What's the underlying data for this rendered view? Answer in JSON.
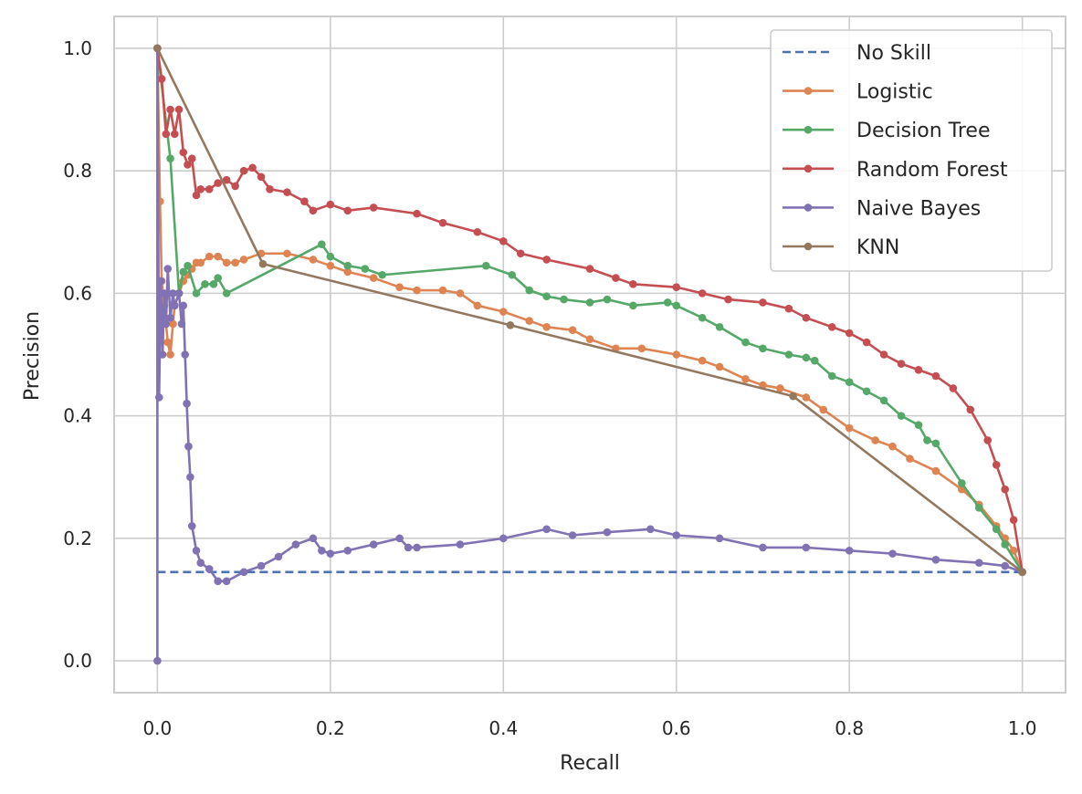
{
  "chart_data": {
    "type": "line",
    "title": "",
    "xlabel": "Recall",
    "ylabel": "Precision",
    "xlim": [
      -0.05,
      1.05
    ],
    "ylim": [
      -0.052,
      1.052
    ],
    "xticks": [
      0.0,
      0.2,
      0.4,
      0.6,
      0.8,
      1.0
    ],
    "xtick_labels": [
      "0.0",
      "0.2",
      "0.4",
      "0.6",
      "0.8",
      "1.0"
    ],
    "yticks": [
      0.0,
      0.2,
      0.4,
      0.6,
      0.8,
      1.0
    ],
    "ytick_labels": [
      "0.0",
      "0.2",
      "0.4",
      "0.6",
      "0.8",
      "1.0"
    ],
    "grid": true,
    "legend_position": "top-right",
    "series": [
      {
        "name": "No Skill",
        "color": "#4c72b0",
        "style": "dashed",
        "markers": false,
        "points": [
          [
            0.0,
            0.145
          ],
          [
            1.0,
            0.145
          ]
        ]
      },
      {
        "name": "Logistic",
        "color": "#dd8452",
        "style": "solid",
        "markers": true,
        "points": [
          [
            0.0,
            1.0
          ],
          [
            0.003,
            0.75
          ],
          [
            0.005,
            0.62
          ],
          [
            0.008,
            0.58
          ],
          [
            0.01,
            0.55
          ],
          [
            0.012,
            0.52
          ],
          [
            0.015,
            0.5
          ],
          [
            0.018,
            0.55
          ],
          [
            0.02,
            0.58
          ],
          [
            0.025,
            0.6
          ],
          [
            0.03,
            0.62
          ],
          [
            0.035,
            0.63
          ],
          [
            0.04,
            0.64
          ],
          [
            0.045,
            0.65
          ],
          [
            0.05,
            0.65
          ],
          [
            0.06,
            0.66
          ],
          [
            0.07,
            0.66
          ],
          [
            0.08,
            0.65
          ],
          [
            0.09,
            0.65
          ],
          [
            0.1,
            0.655
          ],
          [
            0.12,
            0.665
          ],
          [
            0.15,
            0.665
          ],
          [
            0.18,
            0.655
          ],
          [
            0.2,
            0.645
          ],
          [
            0.22,
            0.635
          ],
          [
            0.25,
            0.625
          ],
          [
            0.28,
            0.61
          ],
          [
            0.3,
            0.605
          ],
          [
            0.33,
            0.605
          ],
          [
            0.35,
            0.6
          ],
          [
            0.37,
            0.58
          ],
          [
            0.4,
            0.57
          ],
          [
            0.43,
            0.555
          ],
          [
            0.45,
            0.545
          ],
          [
            0.48,
            0.54
          ],
          [
            0.5,
            0.525
          ],
          [
            0.53,
            0.51
          ],
          [
            0.56,
            0.51
          ],
          [
            0.6,
            0.5
          ],
          [
            0.63,
            0.49
          ],
          [
            0.65,
            0.48
          ],
          [
            0.68,
            0.46
          ],
          [
            0.7,
            0.45
          ],
          [
            0.72,
            0.445
          ],
          [
            0.75,
            0.43
          ],
          [
            0.77,
            0.41
          ],
          [
            0.8,
            0.38
          ],
          [
            0.83,
            0.36
          ],
          [
            0.85,
            0.35
          ],
          [
            0.87,
            0.33
          ],
          [
            0.9,
            0.31
          ],
          [
            0.93,
            0.28
          ],
          [
            0.95,
            0.255
          ],
          [
            0.97,
            0.22
          ],
          [
            0.98,
            0.2
          ],
          [
            0.99,
            0.18
          ],
          [
            1.0,
            0.145
          ]
        ]
      },
      {
        "name": "Decision Tree",
        "color": "#55a868",
        "style": "solid",
        "markers": true,
        "points": [
          [
            0.0,
            1.0
          ],
          [
            0.015,
            0.82
          ],
          [
            0.025,
            0.6
          ],
          [
            0.03,
            0.635
          ],
          [
            0.035,
            0.645
          ],
          [
            0.045,
            0.6
          ],
          [
            0.055,
            0.615
          ],
          [
            0.065,
            0.615
          ],
          [
            0.07,
            0.625
          ],
          [
            0.08,
            0.6
          ],
          [
            0.19,
            0.68
          ],
          [
            0.2,
            0.66
          ],
          [
            0.22,
            0.645
          ],
          [
            0.24,
            0.64
          ],
          [
            0.26,
            0.63
          ],
          [
            0.38,
            0.645
          ],
          [
            0.41,
            0.63
          ],
          [
            0.43,
            0.605
          ],
          [
            0.45,
            0.595
          ],
          [
            0.47,
            0.59
          ],
          [
            0.5,
            0.585
          ],
          [
            0.52,
            0.59
          ],
          [
            0.55,
            0.58
          ],
          [
            0.59,
            0.585
          ],
          [
            0.6,
            0.58
          ],
          [
            0.63,
            0.56
          ],
          [
            0.65,
            0.545
          ],
          [
            0.68,
            0.52
          ],
          [
            0.7,
            0.51
          ],
          [
            0.73,
            0.5
          ],
          [
            0.75,
            0.495
          ],
          [
            0.76,
            0.49
          ],
          [
            0.78,
            0.465
          ],
          [
            0.8,
            0.455
          ],
          [
            0.82,
            0.44
          ],
          [
            0.84,
            0.425
          ],
          [
            0.86,
            0.4
          ],
          [
            0.88,
            0.385
          ],
          [
            0.89,
            0.36
          ],
          [
            0.9,
            0.355
          ],
          [
            0.93,
            0.29
          ],
          [
            0.95,
            0.25
          ],
          [
            0.97,
            0.215
          ],
          [
            0.98,
            0.19
          ],
          [
            1.0,
            0.145
          ]
        ]
      },
      {
        "name": "Random Forest",
        "color": "#c44e52",
        "style": "solid",
        "markers": true,
        "points": [
          [
            0.0,
            1.0
          ],
          [
            0.005,
            0.95
          ],
          [
            0.01,
            0.86
          ],
          [
            0.015,
            0.9
          ],
          [
            0.02,
            0.86
          ],
          [
            0.025,
            0.9
          ],
          [
            0.03,
            0.83
          ],
          [
            0.035,
            0.81
          ],
          [
            0.04,
            0.82
          ],
          [
            0.045,
            0.76
          ],
          [
            0.05,
            0.77
          ],
          [
            0.06,
            0.77
          ],
          [
            0.07,
            0.78
          ],
          [
            0.08,
            0.785
          ],
          [
            0.09,
            0.775
          ],
          [
            0.1,
            0.8
          ],
          [
            0.11,
            0.805
          ],
          [
            0.12,
            0.79
          ],
          [
            0.13,
            0.77
          ],
          [
            0.15,
            0.765
          ],
          [
            0.17,
            0.75
          ],
          [
            0.18,
            0.735
          ],
          [
            0.2,
            0.745
          ],
          [
            0.22,
            0.735
          ],
          [
            0.25,
            0.74
          ],
          [
            0.3,
            0.73
          ],
          [
            0.33,
            0.715
          ],
          [
            0.37,
            0.7
          ],
          [
            0.4,
            0.685
          ],
          [
            0.42,
            0.665
          ],
          [
            0.45,
            0.655
          ],
          [
            0.5,
            0.64
          ],
          [
            0.53,
            0.625
          ],
          [
            0.55,
            0.615
          ],
          [
            0.6,
            0.61
          ],
          [
            0.63,
            0.6
          ],
          [
            0.66,
            0.59
          ],
          [
            0.7,
            0.585
          ],
          [
            0.73,
            0.575
          ],
          [
            0.75,
            0.56
          ],
          [
            0.78,
            0.545
          ],
          [
            0.8,
            0.535
          ],
          [
            0.82,
            0.52
          ],
          [
            0.84,
            0.5
          ],
          [
            0.86,
            0.485
          ],
          [
            0.88,
            0.475
          ],
          [
            0.9,
            0.465
          ],
          [
            0.92,
            0.445
          ],
          [
            0.94,
            0.41
          ],
          [
            0.96,
            0.36
          ],
          [
            0.97,
            0.32
          ],
          [
            0.98,
            0.28
          ],
          [
            0.99,
            0.23
          ],
          [
            1.0,
            0.145
          ]
        ]
      },
      {
        "name": "Naive Bayes",
        "color": "#8172b3",
        "style": "solid",
        "markers": true,
        "points": [
          [
            0.0,
            0.0
          ],
          [
            0.0,
            1.0
          ],
          [
            0.002,
            0.43
          ],
          [
            0.004,
            0.62
          ],
          [
            0.006,
            0.5
          ],
          [
            0.008,
            0.6
          ],
          [
            0.01,
            0.55
          ],
          [
            0.012,
            0.64
          ],
          [
            0.015,
            0.56
          ],
          [
            0.018,
            0.6
          ],
          [
            0.02,
            0.58
          ],
          [
            0.025,
            0.6
          ],
          [
            0.028,
            0.55
          ],
          [
            0.03,
            0.58
          ],
          [
            0.032,
            0.5
          ],
          [
            0.034,
            0.42
          ],
          [
            0.036,
            0.35
          ],
          [
            0.038,
            0.3
          ],
          [
            0.04,
            0.22
          ],
          [
            0.045,
            0.18
          ],
          [
            0.05,
            0.16
          ],
          [
            0.06,
            0.15
          ],
          [
            0.07,
            0.13
          ],
          [
            0.08,
            0.13
          ],
          [
            0.1,
            0.145
          ],
          [
            0.12,
            0.155
          ],
          [
            0.14,
            0.17
          ],
          [
            0.16,
            0.19
          ],
          [
            0.18,
            0.2
          ],
          [
            0.19,
            0.18
          ],
          [
            0.2,
            0.175
          ],
          [
            0.22,
            0.18
          ],
          [
            0.25,
            0.19
          ],
          [
            0.28,
            0.2
          ],
          [
            0.29,
            0.185
          ],
          [
            0.3,
            0.185
          ],
          [
            0.35,
            0.19
          ],
          [
            0.4,
            0.2
          ],
          [
            0.45,
            0.215
          ],
          [
            0.48,
            0.205
          ],
          [
            0.52,
            0.21
          ],
          [
            0.57,
            0.215
          ],
          [
            0.6,
            0.205
          ],
          [
            0.65,
            0.2
          ],
          [
            0.7,
            0.185
          ],
          [
            0.75,
            0.185
          ],
          [
            0.8,
            0.18
          ],
          [
            0.85,
            0.175
          ],
          [
            0.9,
            0.165
          ],
          [
            0.95,
            0.16
          ],
          [
            0.98,
            0.155
          ],
          [
            1.0,
            0.145
          ]
        ]
      },
      {
        "name": "KNN",
        "color": "#937860",
        "style": "solid",
        "markers": true,
        "points": [
          [
            0.0,
            1.0
          ],
          [
            0.122,
            0.648
          ],
          [
            0.408,
            0.548
          ],
          [
            0.735,
            0.432
          ],
          [
            1.0,
            0.145
          ]
        ]
      }
    ]
  }
}
